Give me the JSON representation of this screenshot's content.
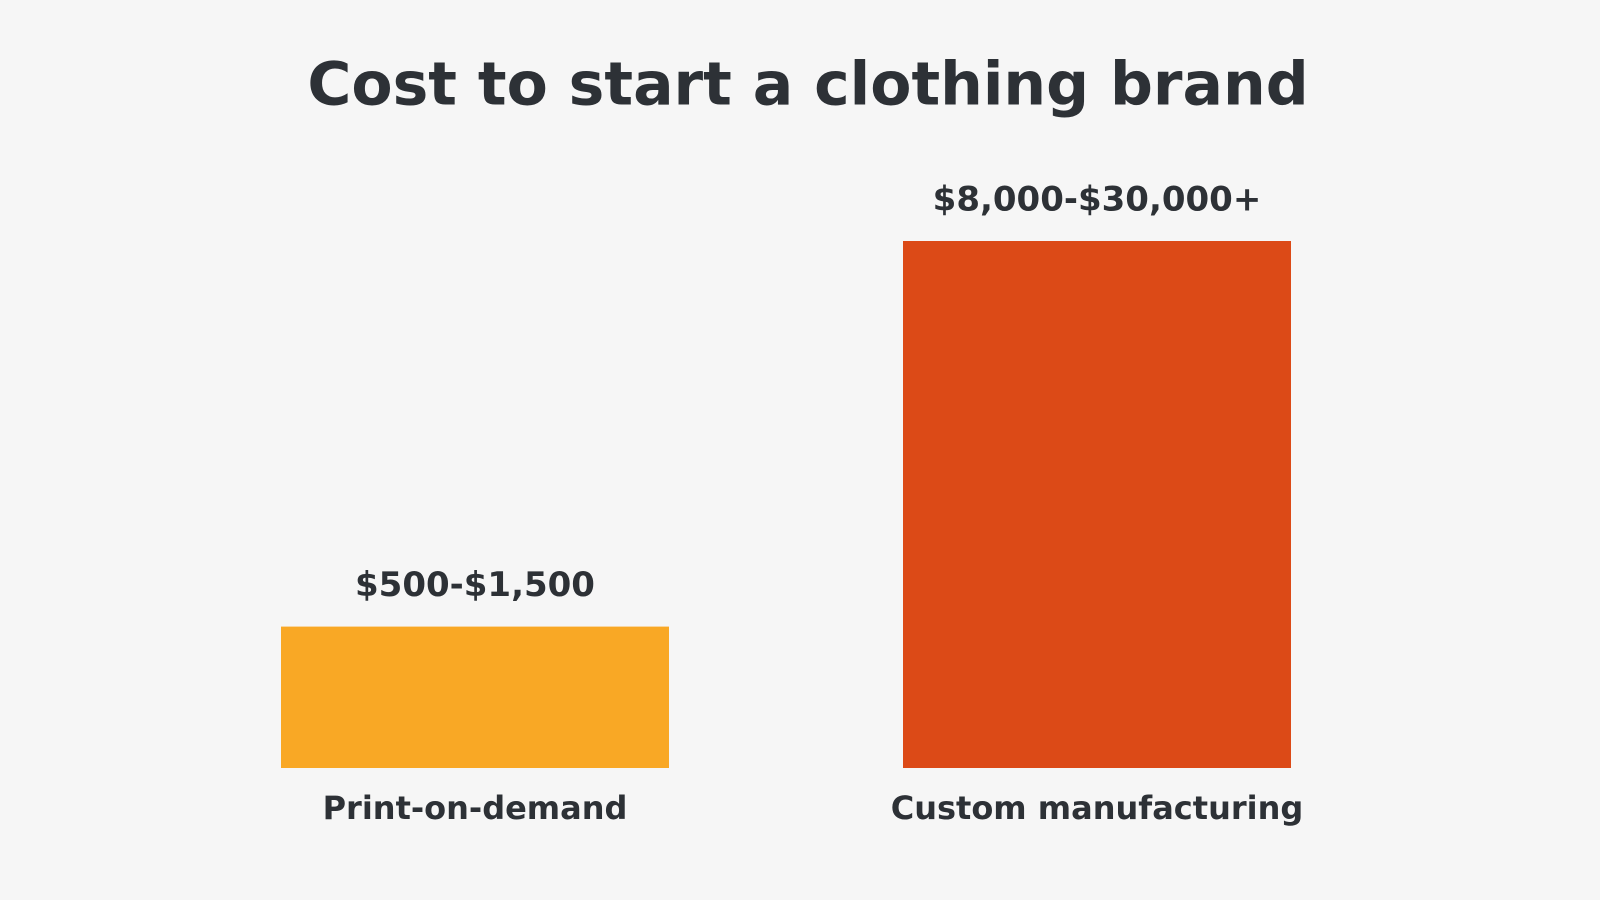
{
  "chart_data": {
    "type": "bar",
    "title": "Cost to start a clothing brand",
    "categories": [
      "Print-on-demand",
      "Custom manufacturing"
    ],
    "low": [
      500,
      8000
    ],
    "high": [
      1500,
      30000
    ],
    "value_labels": [
      "$500-$1,500",
      "$8,000-$30,000+"
    ],
    "colors": [
      "#f9a825",
      "#dc4a17"
    ]
  }
}
